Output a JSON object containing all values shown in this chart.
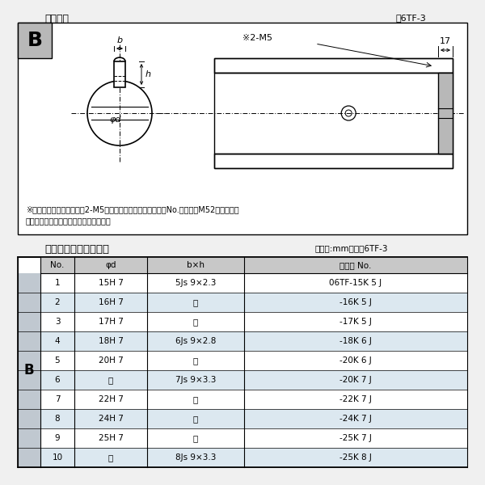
{
  "title_top": "軸穴形状",
  "fig_label_top": "図6TF-3",
  "title_bottom": "軸穴形状コード一覧表",
  "unit_label": "（単位:mm）　表6TF-3",
  "note1": "※セットボルト用タップ（2-M5）が必要な場合は右記コードNo.の末尾にM52を付ける。",
  "note2": "（セットボルトは付属されています。）",
  "col_headers": [
    "No.",
    "φd",
    "b×h",
    "コード No."
  ],
  "b_label": "B",
  "rows": [
    [
      "1",
      "15H 7",
      "5Js 9×2.3",
      "06TF-15K 5 J"
    ],
    [
      "2",
      "16H 7",
      "〃",
      "-16K 5 J"
    ],
    [
      "3",
      "17H 7",
      "〃",
      "-17K 5 J"
    ],
    [
      "4",
      "18H 7",
      "6Js 9×2.8",
      "-18K 6 J"
    ],
    [
      "5",
      "20H 7",
      "〃",
      "-20K 6 J"
    ],
    [
      "6",
      "〃",
      "7Js 9×3.3",
      "-20K 7 J"
    ],
    [
      "7",
      "22H 7",
      "〃",
      "-22K 7 J"
    ],
    [
      "8",
      "24H 7",
      "〃",
      "-24K 7 J"
    ],
    [
      "9",
      "25H 7",
      "〃",
      "-25K 7 J"
    ],
    [
      "10",
      "〃",
      "8Js 9×3.3",
      "-25K 8 J"
    ]
  ],
  "bg_color": "#f0f0f0",
  "diagram_bg": "#ffffff",
  "border_color": "#000000",
  "header_bg": "#c8c8c8",
  "row_bg_light": "#dce8f0",
  "row_bg_white": "#ffffff",
  "b_col_bg": "#c0c8d0",
  "text_color": "#000000",
  "hatch_color": "#888888"
}
